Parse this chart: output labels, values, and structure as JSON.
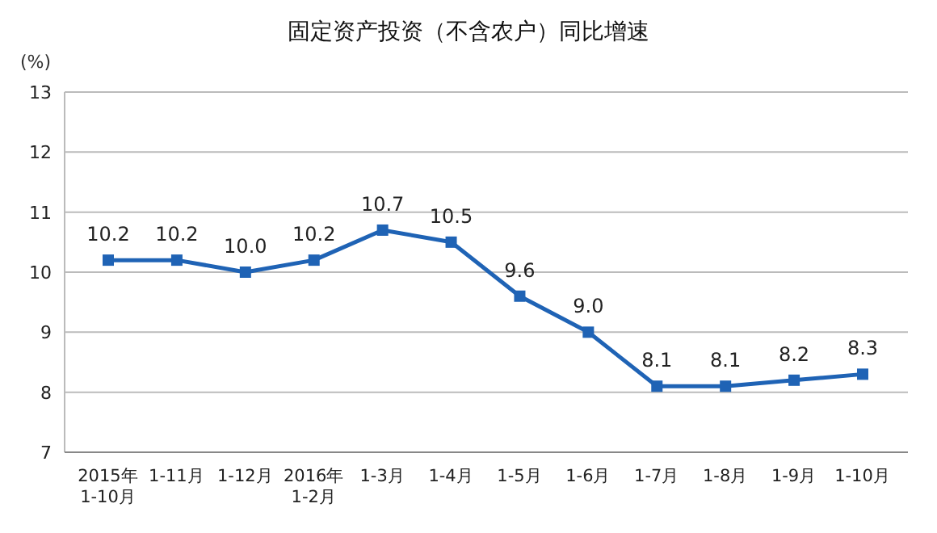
{
  "chart_data": {
    "type": "line",
    "title": "固定资产投资（不含农户）同比增速",
    "ylabel": "(%)",
    "categories": [
      "2015年\n1-10月",
      "1-11月",
      "1-12月",
      "2016年\n1-2月",
      "1-3月",
      "1-4月",
      "1-5月",
      "1-6月",
      "1-7月",
      "1-8月",
      "1-9月",
      "1-10月"
    ],
    "series": [
      {
        "color": "#1f63b5",
        "values": [
          10.2,
          10.2,
          10.0,
          10.2,
          10.7,
          10.5,
          9.6,
          9.0,
          8.1,
          8.1,
          8.2,
          8.3
        ],
        "value_labels": [
          "10.2",
          "10.2",
          "10.0",
          "10.2",
          "10.7",
          "10.5",
          "9.6",
          "9.0",
          "8.1",
          "8.1",
          "8.2",
          "8.3"
        ]
      }
    ],
    "ylim": [
      7,
      13
    ],
    "yticks": [
      7,
      8,
      9,
      10,
      11,
      12,
      13
    ],
    "grid": "y",
    "marker": "square",
    "line_style": "solid"
  }
}
